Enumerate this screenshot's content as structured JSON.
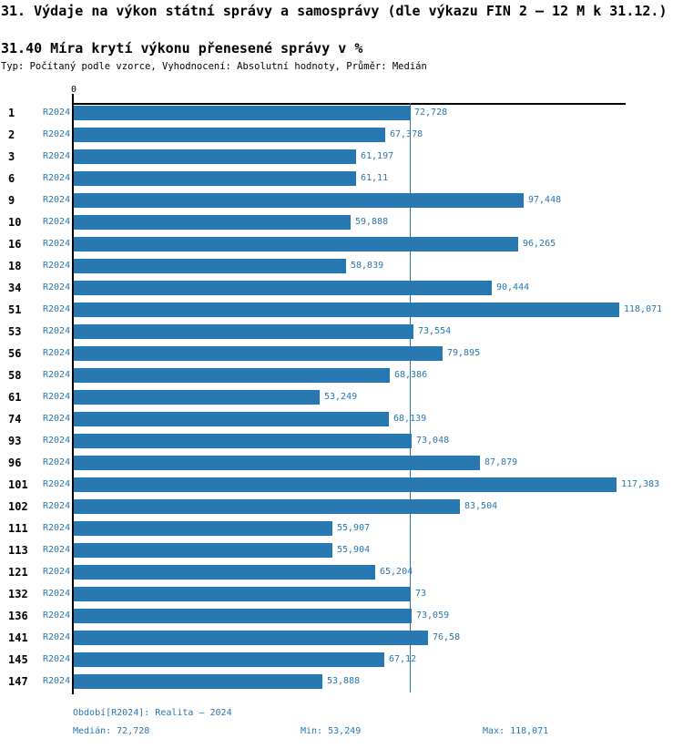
{
  "header": {
    "title": "31. Výdaje na výkon státní správy a samosprávy (dle výkazu FIN 2 – 12 M k 31.12.)",
    "subtitle": "31.40 Míra krytí výkonu přenesené správy v %",
    "meta": "Typ: Počítaný podle vzorce, Vyhodnocení: Absolutní hodnoty, Průměr: Medián"
  },
  "axis": {
    "zero_label": "0"
  },
  "chart_data": {
    "type": "bar",
    "orientation": "horizontal",
    "title": "31.40 Míra krytí výkonu přenesené správy v %",
    "xlabel": "",
    "ylabel": "",
    "xlim": [
      0,
      119.4
    ],
    "grid": false,
    "legend_position": "none",
    "series_label": "R2024",
    "categories": [
      "1",
      "2",
      "3",
      "6",
      "9",
      "10",
      "16",
      "18",
      "34",
      "51",
      "53",
      "56",
      "58",
      "61",
      "74",
      "93",
      "96",
      "101",
      "102",
      "111",
      "113",
      "121",
      "132",
      "136",
      "141",
      "145",
      "147"
    ],
    "values": [
      72.728,
      67.378,
      61.197,
      61.11,
      97.448,
      59.888,
      96.265,
      58.839,
      90.444,
      118.071,
      73.554,
      79.895,
      68.386,
      53.249,
      68.139,
      73.048,
      87.879,
      117.383,
      83.504,
      55.907,
      55.904,
      65.204,
      73,
      73.059,
      76.58,
      67.12,
      53.888
    ],
    "value_labels": [
      "72,728",
      "67,378",
      "61,197",
      "61,11",
      "97,448",
      "59,888",
      "96,265",
      "58,839",
      "90,444",
      "118,071",
      "73,554",
      "79,895",
      "68,386",
      "53,249",
      "68,139",
      "73,048",
      "87,879",
      "117,383",
      "83,504",
      "55,907",
      "55,904",
      "65,204",
      "73",
      "73,059",
      "76,58",
      "67,12",
      "53,888"
    ],
    "median": 72.728,
    "min": 53.249,
    "max": 118.071,
    "colors": {
      "bar": "#2777b0",
      "blue_text": "#2777b0",
      "axis": "#000000"
    }
  },
  "footer": {
    "period": "Období[R2024]: Realita – 2024",
    "median": "Medián: 72,728",
    "min": "Min: 53,249",
    "max": "Max: 118,071"
  }
}
